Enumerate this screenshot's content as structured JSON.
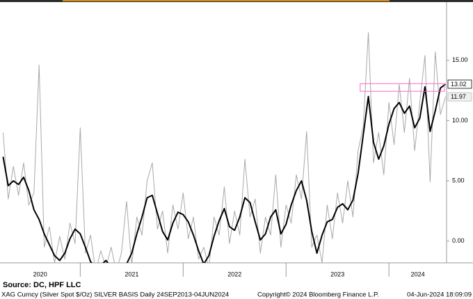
{
  "chart_data": {
    "type": "line",
    "source": "Source: DC, HPF LLC",
    "footer": [
      "XAG Curncy (Silver Spot  $/Oz) SILVER BASIS  Daily 24SEP2013-04JUN2024",
      "Copyright© 2024 Bloomberg Finance L.P.",
      "04-Jun-2024 18:09:09"
    ],
    "year_labels": [
      "2020",
      "2021",
      "2022",
      "2023",
      "2024"
    ],
    "x": [
      2020.25,
      2020.3,
      2020.35,
      2020.4,
      2020.45,
      2020.5,
      2020.55,
      2020.6,
      2020.65,
      2020.7,
      2020.75,
      2020.8,
      2020.85,
      2020.9,
      2020.95,
      2021.0,
      2021.05,
      2021.1,
      2021.15,
      2021.2,
      2021.25,
      2021.3,
      2021.35,
      2021.4,
      2021.45,
      2021.5,
      2021.55,
      2021.6,
      2021.65,
      2021.7,
      2021.75,
      2021.8,
      2021.85,
      2021.9,
      2021.95,
      2022.0,
      2022.05,
      2022.1,
      2022.15,
      2022.2,
      2022.25,
      2022.3,
      2022.35,
      2022.4,
      2022.45,
      2022.5,
      2022.55,
      2022.6,
      2022.65,
      2022.7,
      2022.75,
      2022.8,
      2022.85,
      2022.9,
      2022.95,
      2023.0,
      2023.05,
      2023.1,
      2023.15,
      2023.2,
      2023.25,
      2023.3,
      2023.35,
      2023.4,
      2023.45,
      2023.5,
      2023.55,
      2023.6,
      2023.65,
      2023.7,
      2023.75,
      2023.8,
      2023.85,
      2023.9,
      2023.95,
      2024.0,
      2024.05,
      2024.1,
      2024.15,
      2024.2,
      2024.25,
      2024.3,
      2024.35,
      2024.4,
      2024.45,
      2024.5,
      2024.55
    ],
    "series": [
      {
        "name": "SILVER BASIS",
        "color": "#a8a8a8",
        "end_label": "11.97",
        "values": [
          9.0,
          3.5,
          6.2,
          3.8,
          6.5,
          3.0,
          4.0,
          14.6,
          -0.5,
          1.2,
          -1.8,
          0.4,
          -1.5,
          1.5,
          -0.2,
          9.4,
          -1.0,
          0.5,
          -2.5,
          -0.8,
          -2.2,
          -0.5,
          -2.5,
          -1.0,
          3.3,
          -2.0,
          2.0,
          0.5,
          5.0,
          6.5,
          1.0,
          2.5,
          -1.0,
          3.0,
          1.0,
          4.0,
          0.2,
          2.0,
          -1.5,
          -0.5,
          -2.2,
          2.0,
          0.5,
          4.5,
          -0.2,
          2.5,
          0.5,
          6.8,
          2.0,
          3.5,
          -1.0,
          2.0,
          0.5,
          5.5,
          -0.5,
          3.0,
          1.5,
          5.5,
          3.5,
          9.1,
          -0.5,
          0.5,
          -1.8,
          3.0,
          0.2,
          4.0,
          1.5,
          5.0,
          2.0,
          7.5,
          9.5,
          17.3,
          6.5,
          9.0,
          5.5,
          11.5,
          8.0,
          13.0,
          9.0,
          13.5,
          7.5,
          11.5,
          15.4,
          4.9,
          15.7,
          10.5,
          11.97
        ]
      },
      {
        "color": "#000000",
        "end_label": "13.02",
        "values": [
          7.0,
          4.6,
          5.0,
          4.7,
          5.3,
          4.2,
          2.6,
          1.8,
          0.6,
          -0.3,
          -1.2,
          -1.6,
          -1.0,
          0.2,
          1.0,
          0.6,
          -0.5,
          -1.7,
          -2.2,
          -2.0,
          -1.6,
          -2.2,
          -2.0,
          -2.3,
          -1.9,
          -1.0,
          0.6,
          2.0,
          3.6,
          3.8,
          2.3,
          0.8,
          0.1,
          1.5,
          2.4,
          2.2,
          1.6,
          0.5,
          -0.8,
          -1.9,
          -1.2,
          0.4,
          1.7,
          2.7,
          1.2,
          0.9,
          2.0,
          3.6,
          3.2,
          1.6,
          0.1,
          0.6,
          2.0,
          2.6,
          0.6,
          1.4,
          3.0,
          4.2,
          5.0,
          3.4,
          0.8,
          -1.0,
          0.5,
          1.6,
          1.8,
          2.8,
          3.1,
          2.6,
          3.4,
          5.6,
          8.8,
          12.0,
          8.2,
          6.8,
          7.9,
          9.7,
          11.0,
          11.5,
          10.6,
          11.2,
          9.4,
          10.2,
          12.8,
          9.1,
          10.8,
          12.7,
          13.02
        ]
      }
    ],
    "xlim": [
      2020.22,
      2024.56
    ],
    "xticks": [
      2021,
      2022,
      2023,
      2024
    ],
    "ylim": [
      -1.8,
      20.0
    ],
    "yticks": [
      {
        "value": 0,
        "label": "0.00"
      },
      {
        "value": 5,
        "label": "5.00"
      },
      {
        "value": 10,
        "label": "10.00"
      },
      {
        "value": 15,
        "label": "15.00"
      }
    ],
    "highlight": {
      "x": [
        2023.72,
        2024.54
      ],
      "y": [
        12.43,
        13.06
      ],
      "color": "#ff66cc"
    }
  }
}
